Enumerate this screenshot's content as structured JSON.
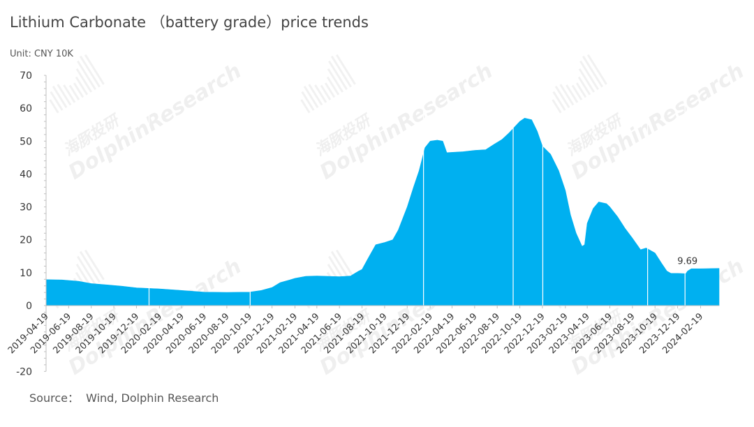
{
  "chart_data": {
    "type": "area",
    "title": "Lithium Carbonate （battery grade）price trends",
    "unit_label": "Unit: CNY 10K",
    "source": "Source：  Wind, Dolphin Research",
    "color": "#00B0F0",
    "ylim": [
      -20,
      70
    ],
    "yticks": [
      -20,
      0,
      10,
      20,
      30,
      40,
      50,
      60,
      70
    ],
    "xlim": [
      "2019-04-19",
      "2024-04-09"
    ],
    "xticks": [
      "2019-04-19",
      "2019-06-19",
      "2019-08-19",
      "2019-10-19",
      "2019-12-19",
      "2020-02-19",
      "2020-04-19",
      "2020-06-19",
      "2020-08-19",
      "2020-10-19",
      "2020-12-19",
      "2021-02-19",
      "2021-04-19",
      "2021-06-19",
      "2021-08-19",
      "2021-10-19",
      "2021-12-19",
      "2022-02-19",
      "2022-04-19",
      "2022-06-19",
      "2022-08-19",
      "2022-10-19",
      "2022-12-19",
      "2023-02-19",
      "2023-04-19",
      "2023-06-19",
      "2023-08-19",
      "2023-10-19",
      "2023-12-19",
      "2024-02-19"
    ],
    "grid": false,
    "legend": "none",
    "series": [
      {
        "points": [
          [
            "2019-04-19",
            7.9
          ],
          [
            "2019-06-01",
            7.8
          ],
          [
            "2019-07-15",
            7.4
          ],
          [
            "2019-08-19",
            6.7
          ],
          [
            "2019-10-01",
            6.3
          ],
          [
            "2019-11-10",
            5.9
          ],
          [
            "2019-12-19",
            5.4
          ],
          [
            "2020-02-19",
            5.1
          ],
          [
            "2020-04-19",
            4.6
          ],
          [
            "2020-06-19",
            4.1
          ],
          [
            "2020-08-19",
            4.0
          ],
          [
            "2020-10-19",
            4.1
          ],
          [
            "2020-11-20",
            4.6
          ],
          [
            "2020-12-19",
            5.5
          ],
          [
            "2021-01-10",
            7.0
          ],
          [
            "2021-02-05",
            7.8
          ],
          [
            "2021-02-19",
            8.3
          ],
          [
            "2021-03-20",
            8.9
          ],
          [
            "2021-04-19",
            9.0
          ],
          [
            "2021-05-20",
            8.9
          ],
          [
            "2021-06-19",
            8.8
          ],
          [
            "2021-07-19",
            9.0
          ],
          [
            "2021-08-10",
            10.5
          ],
          [
            "2021-08-19",
            11.0
          ],
          [
            "2021-09-05",
            14.5
          ],
          [
            "2021-09-25",
            18.5
          ],
          [
            "2021-10-19",
            19.2
          ],
          [
            "2021-11-10",
            20.0
          ],
          [
            "2021-11-25",
            23.0
          ],
          [
            "2021-12-19",
            30.0
          ],
          [
            "2022-01-05",
            36.0
          ],
          [
            "2022-01-20",
            41.0
          ],
          [
            "2022-02-05",
            48.0
          ],
          [
            "2022-02-19",
            50.0
          ],
          [
            "2022-03-10",
            50.3
          ],
          [
            "2022-03-25",
            50.0
          ],
          [
            "2022-04-05",
            46.5
          ],
          [
            "2022-05-19",
            46.8
          ],
          [
            "2022-06-19",
            47.2
          ],
          [
            "2022-07-19",
            47.4
          ],
          [
            "2022-08-10",
            49.0
          ],
          [
            "2022-09-01",
            50.5
          ],
          [
            "2022-09-20",
            52.5
          ],
          [
            "2022-10-19",
            56.0
          ],
          [
            "2022-11-01",
            57.0
          ],
          [
            "2022-11-20",
            56.5
          ],
          [
            "2022-12-05",
            53.0
          ],
          [
            "2022-12-19",
            48.5
          ],
          [
            "2023-01-10",
            46.0
          ],
          [
            "2023-02-01",
            41.0
          ],
          [
            "2023-02-19",
            35.0
          ],
          [
            "2023-03-05",
            27.5
          ],
          [
            "2023-03-20",
            22.0
          ],
          [
            "2023-04-05",
            18.0
          ],
          [
            "2023-04-12",
            18.5
          ],
          [
            "2023-04-19",
            25.0
          ],
          [
            "2023-05-05",
            29.5
          ],
          [
            "2023-05-20",
            31.5
          ],
          [
            "2023-06-10",
            31.0
          ],
          [
            "2023-06-19",
            30.0
          ],
          [
            "2023-07-10",
            27.0
          ],
          [
            "2023-07-30",
            23.5
          ],
          [
            "2023-08-19",
            20.5
          ],
          [
            "2023-09-10",
            17.0
          ],
          [
            "2023-09-25",
            17.5
          ],
          [
            "2023-10-19",
            16.0
          ],
          [
            "2023-11-05",
            13.0
          ],
          [
            "2023-11-20",
            10.5
          ],
          [
            "2023-12-01",
            9.8
          ],
          [
            "2023-12-19",
            9.8
          ],
          [
            "2024-01-10",
            9.7
          ],
          [
            "2024-01-15",
            10.5
          ],
          [
            "2024-01-25",
            11.2
          ],
          [
            "2024-02-19",
            11.2
          ],
          [
            "2024-04-09",
            11.3
          ]
        ]
      }
    ],
    "gaps": [
      "2020-01-22",
      "2020-10-21",
      "2022-02-01",
      "2022-10-01",
      "2022-12-20",
      "2023-09-29",
      "2024-01-08"
    ],
    "annotations": [
      {
        "x": "2024-01-10",
        "y": 9.69,
        "text": "9.69"
      }
    ]
  },
  "watermark": {
    "brand_en": "DolphinResearch",
    "brand_cn": "海豚投研"
  }
}
